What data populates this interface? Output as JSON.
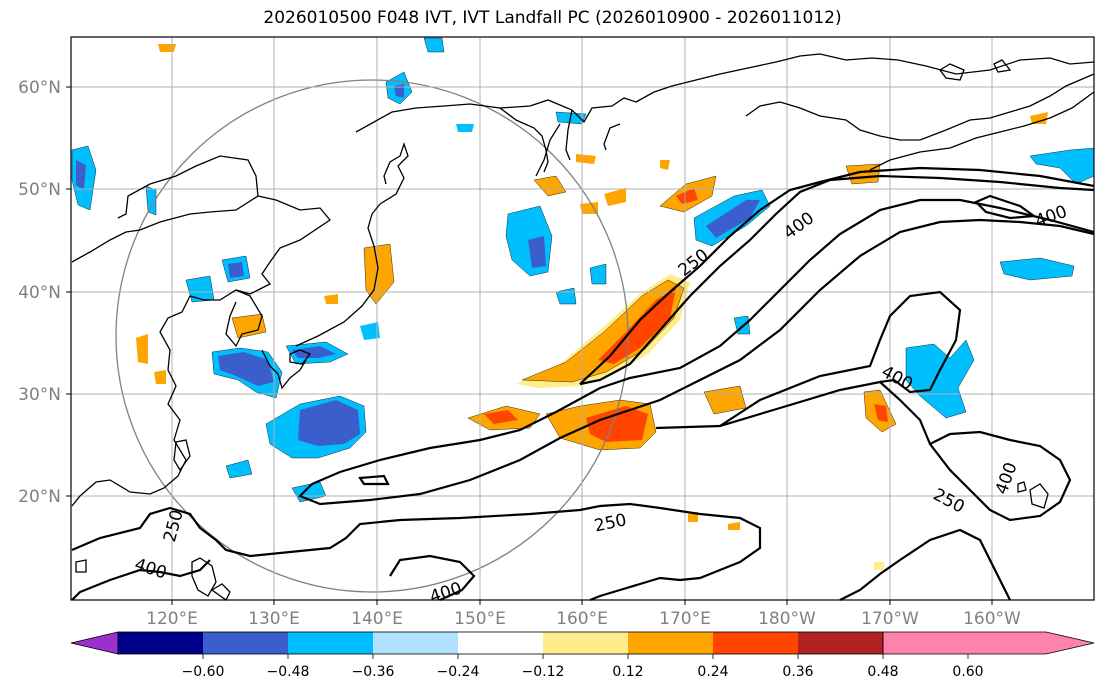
{
  "title": "2026010500 F048 IVT, IVT Landfall PC (2026010900 - 2026011012)",
  "lon_labels": [
    "120°E",
    "130°E",
    "140°E",
    "150°E",
    "160°E",
    "170°E",
    "180°W",
    "170°W",
    "160°W"
  ],
  "lat_labels": [
    "20°N",
    "30°N",
    "40°N",
    "50°N",
    "60°N"
  ],
  "colorbar": {
    "colors": [
      "#9932cc",
      "#00008b",
      "#3a5fcd",
      "#00bfff",
      "#b0e2ff",
      "#ffffff",
      "#ffec8b",
      "#ffa500",
      "#ff4500",
      "#b22222",
      "#ff82ab"
    ],
    "tick_labels": [
      "−0.60",
      "−0.48",
      "−0.36",
      "−0.24",
      "−0.12",
      "0.12",
      "0.24",
      "0.36",
      "0.48",
      "0.60"
    ]
  },
  "contour_labels": [
    "250",
    "400",
    "400",
    "400",
    "250",
    "400",
    "250",
    "250",
    "400",
    "400"
  ],
  "legend_colors": {
    "coast": "#000000",
    "grid": "#b0b0b0",
    "circle": "#808080"
  }
}
